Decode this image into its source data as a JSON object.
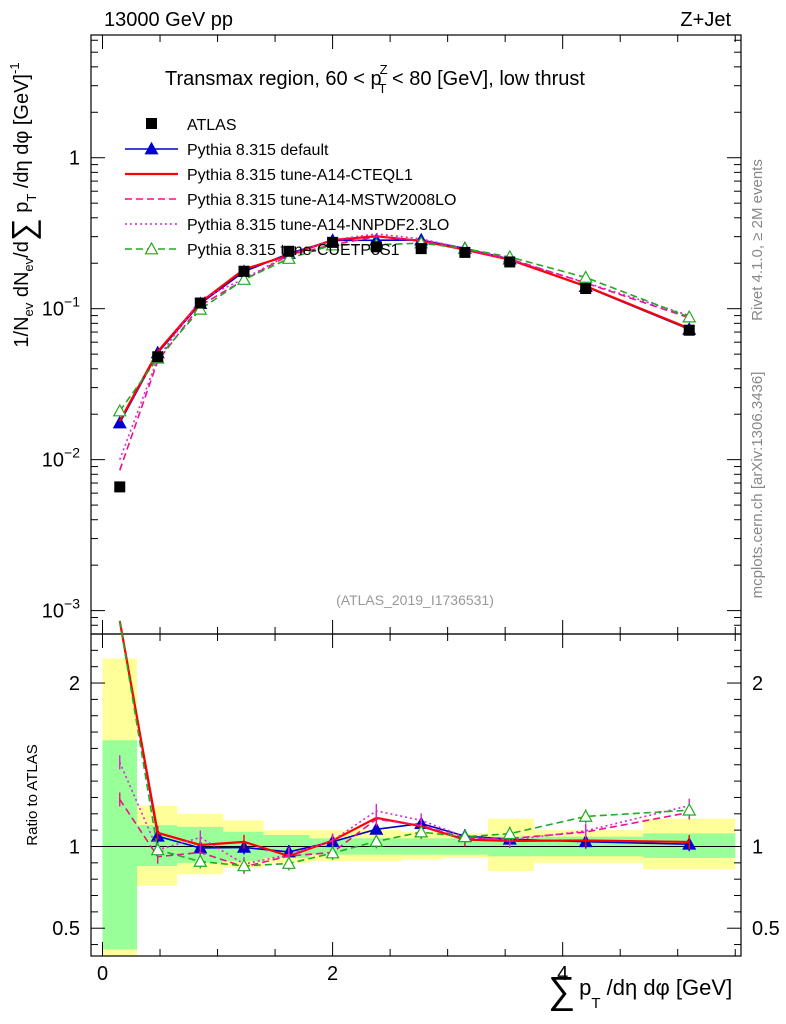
{
  "header": {
    "left": "13000 GeV pp",
    "right": "Z+Jet",
    "plot_title_parts": [
      "Transmax region, 60 < p",
      "Z",
      "T",
      " < 80 [GeV], low thrust"
    ],
    "analysis_id": "(ATLAS_2019_I1736531)",
    "side_rivet": "Rivet 4.1.0, ≥ 2M events",
    "side_mcplots": "mcplots.cern.ch [arXiv:1306.3436]"
  },
  "y_axis_main": {
    "label_parts": [
      "1/N",
      "ev",
      " dN",
      "ev",
      "/d",
      "∑",
      " p",
      "T",
      " /dη dφ  [GeV]",
      "-1"
    ],
    "tick_labels": [
      {
        "mant": "10",
        "exp": "−3",
        "value": 0.001
      },
      {
        "mant": "10",
        "exp": "−2",
        "value": 0.01
      },
      {
        "mant": "10",
        "exp": "−1",
        "value": 0.1
      },
      {
        "mant": "1",
        "exp": "",
        "value": 1
      }
    ]
  },
  "y_axis_ratio": {
    "label": "Ratio to ATLAS",
    "tick_labels": [
      {
        "text": "0.5",
        "value": 0.5
      },
      {
        "text": "1",
        "value": 1
      },
      {
        "text": "2",
        "value": 2
      }
    ]
  },
  "x_axis": {
    "label_parts": [
      "∑",
      "p",
      "T",
      " /dη dφ [GeV]"
    ],
    "tick_labels": [
      {
        "text": "0",
        "value": 0
      },
      {
        "text": "2",
        "value": 2
      },
      {
        "text": "4",
        "value": 4
      }
    ]
  },
  "legend": [
    {
      "label": "ATLAS",
      "color": "#000000",
      "style": "data"
    },
    {
      "label": "Pythia 8.315 default",
      "color": "#0000cc",
      "style": "solid-triangle"
    },
    {
      "label": "Pythia 8.315 tune-A14-CTEQL1",
      "color": "#ff0000",
      "style": "solid"
    },
    {
      "label": "Pythia 8.315 tune-A14-MSTW2008LO",
      "color": "#ee1188",
      "style": "dashed"
    },
    {
      "label": "Pythia 8.315 tune-A14-NNPDF2.3LO",
      "color": "#dd22dd",
      "style": "dotted"
    },
    {
      "label": "Pythia 8.315 tune-CUETP8S1",
      "color": "#22aa22",
      "style": "dashed-open-triangle"
    }
  ],
  "chart_data": {
    "type": "line",
    "title": "Transmax region, 60 < pT^Z < 80 [GeV], low thrust",
    "xlabel": "∑ pT /dη dφ [GeV]",
    "ylabel": "1/Nev dNev/d∑ pT /dη dφ [GeV]^-1",
    "x_range": [
      -0.1,
      5.55
    ],
    "y_range": [
      0.0007,
      6.5
    ],
    "y_scale": "log",
    "ratio_range": [
      0.33,
      2.3
    ],
    "bin_edges": [
      0,
      0.3,
      0.65,
      1.05,
      1.4,
      1.8,
      2.2,
      2.6,
      2.95,
      3.35,
      3.75,
      4.7,
      5.5
    ],
    "x": [
      0.15,
      0.48,
      0.85,
      1.23,
      1.62,
      2.0,
      2.38,
      2.77,
      3.15,
      3.54,
      4.2,
      5.1
    ],
    "data": {
      "name": "ATLAS",
      "values": [
        0.0066,
        0.048,
        0.109,
        0.177,
        0.24,
        0.275,
        0.257,
        0.25,
        0.236,
        0.204,
        0.136,
        0.072
      ]
    },
    "bands": {
      "inner": [
        [
          0.37,
          1.65
        ],
        [
          0.88,
          1.13
        ],
        [
          0.9,
          1.12
        ],
        [
          0.91,
          1.09
        ],
        [
          0.93,
          1.07
        ],
        [
          0.95,
          1.05
        ],
        [
          0.95,
          1.05
        ],
        [
          0.95,
          1.05
        ],
        [
          0.95,
          1.05
        ],
        [
          0.94,
          1.06
        ],
        [
          0.94,
          1.06
        ],
        [
          0.93,
          1.08
        ]
      ],
      "outer": [
        [
          0.33,
          2.15
        ],
        [
          0.76,
          1.25
        ],
        [
          0.83,
          1.2
        ],
        [
          0.87,
          1.16
        ],
        [
          0.9,
          1.1
        ],
        [
          0.91,
          1.1
        ],
        [
          0.91,
          1.1
        ],
        [
          0.92,
          1.09
        ],
        [
          0.93,
          1.08
        ],
        [
          0.85,
          1.17
        ],
        [
          0.9,
          1.1
        ],
        [
          0.86,
          1.17
        ]
      ]
    },
    "series": [
      {
        "name": "Pythia 8.315 default",
        "values": [
          0.0175,
          0.051,
          0.108,
          0.176,
          0.232,
          0.283,
          0.284,
          0.285,
          0.251,
          0.213,
          0.14,
          0.073
        ]
      },
      {
        "name": "Pythia 8.315 tune-A14-CTEQL1",
        "values": [
          0.018,
          0.052,
          0.11,
          0.182,
          0.226,
          0.285,
          0.302,
          0.281,
          0.246,
          0.211,
          0.141,
          0.074
        ]
      },
      {
        "name": "Pythia 8.315 tune-A14-MSTW2008LO",
        "values": [
          0.0085,
          0.045,
          0.105,
          0.155,
          0.226,
          0.265,
          0.3,
          0.282,
          0.248,
          0.214,
          0.148,
          0.087
        ]
      },
      {
        "name": "Pythia 8.315 tune-A14-NNPDF2.3LO",
        "values": [
          0.01,
          0.047,
          0.115,
          0.158,
          0.228,
          0.285,
          0.313,
          0.29,
          0.25,
          0.212,
          0.149,
          0.09
        ]
      },
      {
        "name": "Pythia 8.315 tune-CUETP8S1",
        "values": [
          0.021,
          0.047,
          0.099,
          0.156,
          0.215,
          0.264,
          0.265,
          0.272,
          0.25,
          0.22,
          0.161,
          0.088
        ]
      }
    ]
  }
}
